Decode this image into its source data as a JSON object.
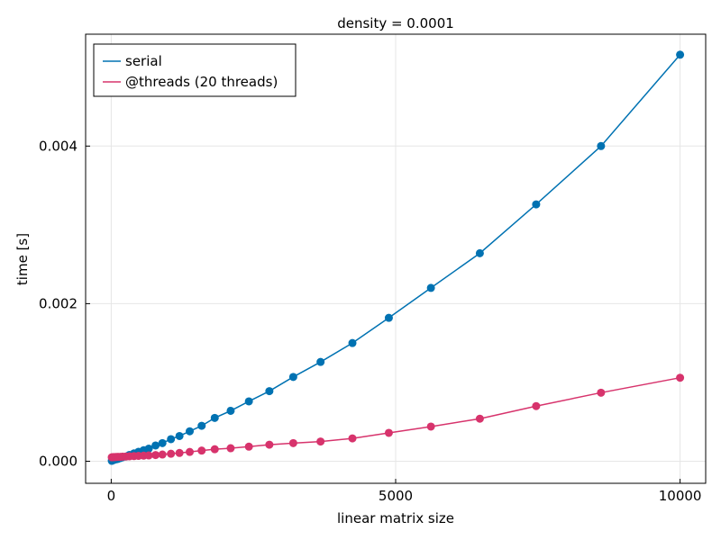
{
  "chart_data": {
    "type": "line",
    "title": "density = 0.0001",
    "xlabel": "linear matrix size",
    "ylabel": "time [s]",
    "xlim": [
      -450,
      10450
    ],
    "ylim": [
      -0.00028,
      0.00542
    ],
    "x_ticks": [
      0,
      5000,
      10000
    ],
    "x_tick_labels": [
      "0",
      "5000",
      "10000"
    ],
    "y_ticks": [
      0,
      0.002,
      0.004
    ],
    "y_tick_labels": [
      "0.000",
      "0.002",
      "0.004"
    ],
    "grid": true,
    "legend_position": "top-left",
    "series": [
      {
        "name": "serial",
        "color": "#0072b2",
        "x": [
          10,
          20,
          40,
          60,
          90,
          120,
          160,
          200,
          260,
          320,
          400,
          480,
          570,
          660,
          780,
          900,
          1050,
          1200,
          1380,
          1590,
          1820,
          2100,
          2420,
          2780,
          3200,
          3680,
          4240,
          4880,
          5620,
          6480,
          7470,
          8610,
          10000
        ],
        "y": [
          5e-06,
          1e-05,
          1.5e-05,
          2e-05,
          2.5e-05,
          3e-05,
          4e-05,
          5e-05,
          6e-05,
          8e-05,
          0.0001,
          0.00012,
          0.00014,
          0.00016,
          0.0002,
          0.00023,
          0.00028,
          0.00032,
          0.00038,
          0.00045,
          0.00055,
          0.00064,
          0.00076,
          0.00089,
          0.00107,
          0.00126,
          0.0015,
          0.00182,
          0.0022,
          0.00264,
          0.00326,
          0.004,
          0.00516
        ]
      },
      {
        "name": "@threads (20 threads)",
        "color": "#d7336c",
        "x": [
          10,
          20,
          40,
          60,
          90,
          120,
          160,
          200,
          260,
          320,
          400,
          480,
          570,
          660,
          780,
          900,
          1050,
          1200,
          1380,
          1590,
          1820,
          2100,
          2420,
          2780,
          3200,
          3680,
          4240,
          4880,
          5620,
          6480,
          7470,
          8610,
          10000
        ],
        "y": [
          5e-05,
          5.1e-05,
          5.2e-05,
          5.3e-05,
          5.4e-05,
          5.5e-05,
          5.6e-05,
          5.8e-05,
          6e-05,
          6.2e-05,
          6.5e-05,
          6.8e-05,
          7.1e-05,
          7.4e-05,
          7.9e-05,
          8.5e-05,
          9.5e-05,
          0.000105,
          0.000118,
          0.000135,
          0.000152,
          0.000165,
          0.000185,
          0.00021,
          0.00023,
          0.00025,
          0.00029,
          0.00036,
          0.00044,
          0.00054,
          0.0007,
          0.00087,
          0.00106
        ]
      }
    ]
  }
}
